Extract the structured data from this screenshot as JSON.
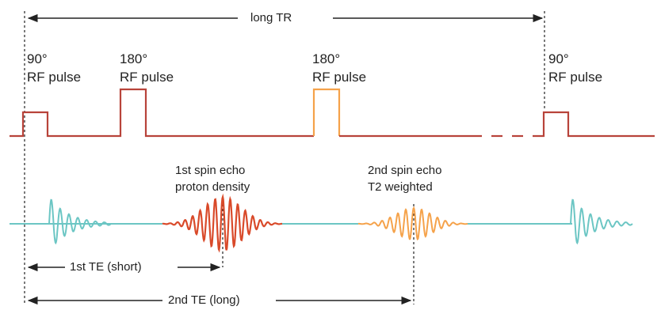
{
  "diagram": {
    "top_range_label": "long TR",
    "pulses": [
      {
        "degree": "90°",
        "label": "RF pulse"
      },
      {
        "degree": "180°",
        "label": "RF pulse"
      },
      {
        "degree": "180°",
        "label": "RF pulse"
      },
      {
        "degree": "90°",
        "label": "RF pulse"
      }
    ],
    "echoes": [
      {
        "line1": "1st spin echo",
        "line2": "proton density"
      },
      {
        "line1": "2nd spin echo",
        "line2": "T2 weighted"
      }
    ],
    "te_ranges": [
      {
        "label": "1st TE (short)"
      },
      {
        "label": "2nd TE (long)"
      }
    ],
    "colors": {
      "pulse_line": "#b8433a",
      "pulse_orange": "#f5a24a",
      "fid_teal": "#6cc6c4",
      "echo1_red": "#d94a2a",
      "echo2_orange": "#f5a24a",
      "arrow": "#222222"
    }
  }
}
